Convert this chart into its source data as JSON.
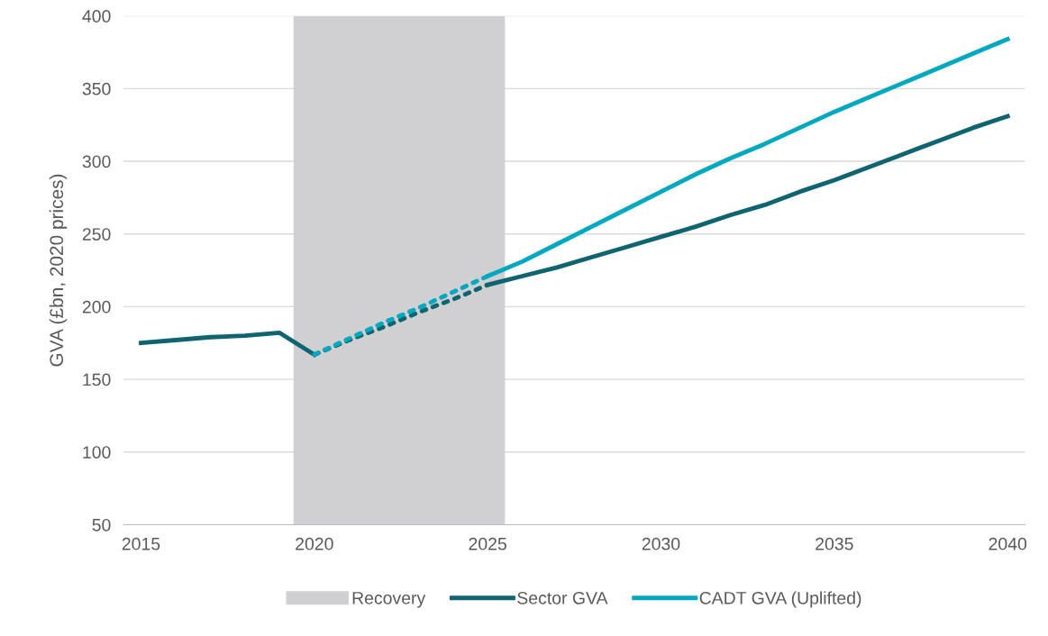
{
  "chart_data": {
    "type": "line",
    "ylabel": "GVA (£bn, 2020 prices)",
    "xlim": [
      2014.5,
      2040.5
    ],
    "xticks": [
      2015,
      2020,
      2025,
      2030,
      2035,
      2040
    ],
    "ylim": [
      50,
      400
    ],
    "yticks": [
      50,
      100,
      150,
      200,
      250,
      300,
      350,
      400
    ],
    "grid": "y",
    "legend": "bottom",
    "bands": [
      {
        "axis": "x",
        "from": 2019.4,
        "to": 2025.5,
        "label": "Recovery",
        "color": "#d0d0d2"
      }
    ],
    "series": [
      {
        "name": "Sector GVA",
        "color": "#0e6470",
        "line_style": "solid",
        "x": [
          2015,
          2016,
          2017,
          2018,
          2019,
          2020
        ],
        "values": [
          175,
          177,
          179,
          180,
          182,
          167
        ]
      },
      {
        "color": "#0e6470",
        "line_style": "dotted",
        "x": [
          2020,
          2021,
          2022,
          2023,
          2024,
          2025
        ],
        "values": [
          167,
          177,
          186,
          196,
          205,
          215
        ]
      },
      {
        "color": "#0e6470",
        "line_style": "solid",
        "x": [
          2025,
          2026,
          2027,
          2028,
          2029,
          2030,
          2031,
          2032,
          2033,
          2034,
          2035,
          2036,
          2037,
          2038,
          2039,
          2040
        ],
        "values": [
          215,
          221,
          227,
          234,
          241,
          248,
          255,
          263,
          270,
          279,
          287,
          296,
          305,
          314,
          323,
          331
        ]
      },
      {
        "color": "#00a8c0",
        "line_style": "dotted",
        "x": [
          2020,
          2021,
          2022,
          2023,
          2024,
          2025
        ],
        "values": [
          167,
          178,
          189,
          199,
          210,
          221
        ]
      },
      {
        "name": "CADT GVA (Uplifted)",
        "color": "#00a8c0",
        "line_style": "solid",
        "x": [
          2025,
          2026,
          2027,
          2028,
          2029,
          2030,
          2031,
          2032,
          2033,
          2034,
          2035,
          2036,
          2037,
          2038,
          2039,
          2040
        ],
        "values": [
          221,
          231,
          243,
          255,
          267,
          279,
          291,
          302,
          312,
          323,
          334,
          344,
          354,
          364,
          374,
          384
        ]
      }
    ]
  }
}
